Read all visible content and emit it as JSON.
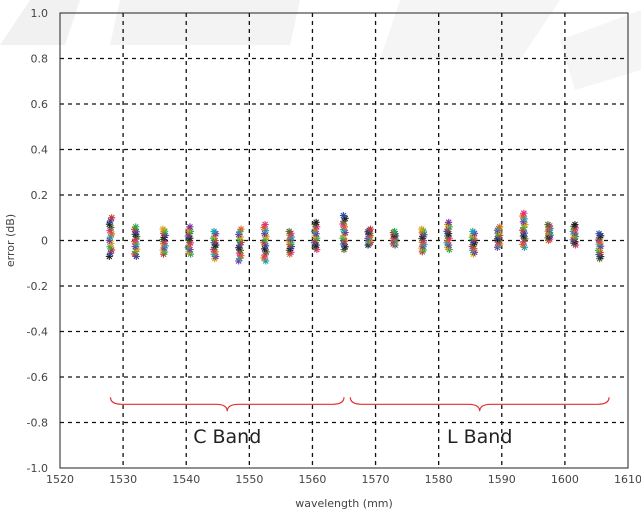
{
  "chart_data": {
    "type": "scatter",
    "xlabel": "wavelength (mm)",
    "ylabel": "error (dB)",
    "xlim": [
      1520,
      1610
    ],
    "ylim": [
      -1.0,
      1.0
    ],
    "x_ticks": [
      1520,
      1530,
      1540,
      1550,
      1560,
      1570,
      1580,
      1590,
      1600,
      1610
    ],
    "y_ticks": [
      "1.0",
      "0.8",
      "0.6",
      "0.4",
      "0.2",
      "0",
      "-0.2",
      "-0.4",
      "-0.6",
      "-0.8",
      "-1.0"
    ],
    "grid": "dashed",
    "marker": "asterisk",
    "point_columns": [
      {
        "x": 1528.0,
        "ymin": -0.07,
        "ymax": 0.1
      },
      {
        "x": 1532.0,
        "ymin": -0.07,
        "ymax": 0.06
      },
      {
        "x": 1536.5,
        "ymin": -0.06,
        "ymax": 0.05
      },
      {
        "x": 1540.5,
        "ymin": -0.06,
        "ymax": 0.06
      },
      {
        "x": 1544.5,
        "ymin": -0.08,
        "ymax": 0.04
      },
      {
        "x": 1548.5,
        "ymin": -0.09,
        "ymax": 0.05
      },
      {
        "x": 1552.5,
        "ymin": -0.09,
        "ymax": 0.07
      },
      {
        "x": 1556.5,
        "ymin": -0.06,
        "ymax": 0.04
      },
      {
        "x": 1560.5,
        "ymin": -0.04,
        "ymax": 0.08
      },
      {
        "x": 1565.0,
        "ymin": -0.04,
        "ymax": 0.11
      },
      {
        "x": 1569.0,
        "ymin": -0.02,
        "ymax": 0.05
      },
      {
        "x": 1573.0,
        "ymin": -0.02,
        "ymax": 0.04
      },
      {
        "x": 1577.5,
        "ymin": -0.05,
        "ymax": 0.05
      },
      {
        "x": 1581.5,
        "ymin": -0.04,
        "ymax": 0.08
      },
      {
        "x": 1585.5,
        "ymin": -0.06,
        "ymax": 0.04
      },
      {
        "x": 1589.5,
        "ymin": -0.03,
        "ymax": 0.06
      },
      {
        "x": 1593.5,
        "ymin": -0.03,
        "ymax": 0.12
      },
      {
        "x": 1597.5,
        "ymin": 0.0,
        "ymax": 0.07
      },
      {
        "x": 1601.5,
        "ymin": -0.02,
        "ymax": 0.07
      },
      {
        "x": 1605.5,
        "ymin": -0.08,
        "ymax": 0.03
      }
    ],
    "series_colors": [
      "#1f1f1f",
      "#2b4aa8",
      "#c83232",
      "#2aa84a",
      "#d4a017",
      "#7b2fa0",
      "#18a0b0",
      "#d2691e",
      "#e0307a",
      "#556b2f"
    ],
    "annotations": [
      {
        "label": "C Band",
        "x_start": 1528,
        "x_end": 1565,
        "y": -0.72,
        "label_y": -0.86
      },
      {
        "label": "L Band",
        "x_start": 1566,
        "x_end": 1607,
        "y": -0.72,
        "label_y": -0.86
      }
    ],
    "brace_color": "#e03030"
  }
}
